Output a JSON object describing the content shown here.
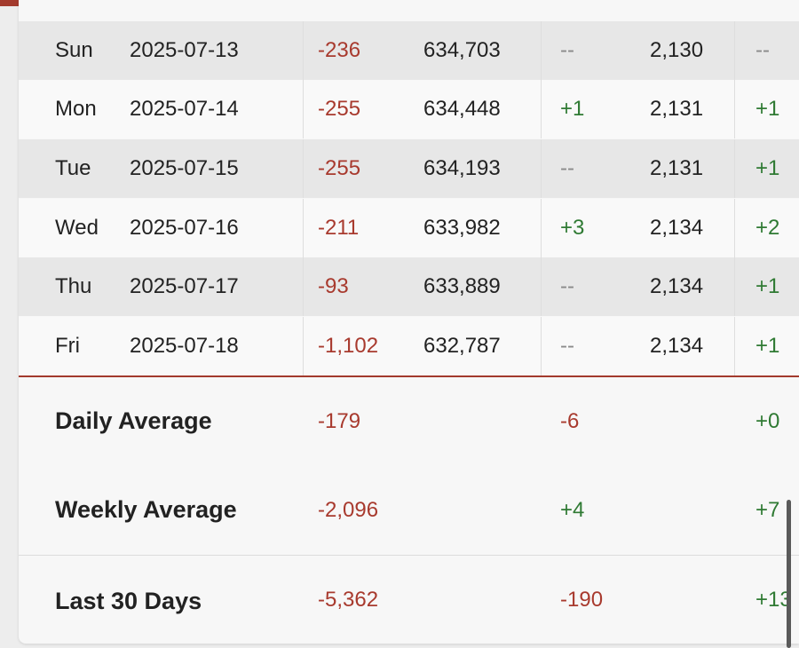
{
  "colors": {
    "accent": "#a33a2d",
    "negative": "#a83a2e",
    "positive": "#2f7a33",
    "neutral": "#8a8a8a"
  },
  "rows": [
    {
      "day": "Sun",
      "date": "2025-07-13",
      "change": "-236",
      "total": "634,703",
      "delta2": "--",
      "count": "2,130",
      "delta3": "--"
    },
    {
      "day": "Mon",
      "date": "2025-07-14",
      "change": "-255",
      "total": "634,448",
      "delta2": "+1",
      "count": "2,131",
      "delta3": "+1"
    },
    {
      "day": "Tue",
      "date": "2025-07-15",
      "change": "-255",
      "total": "634,193",
      "delta2": "--",
      "count": "2,131",
      "delta3": "+1"
    },
    {
      "day": "Wed",
      "date": "2025-07-16",
      "change": "-211",
      "total": "633,982",
      "delta2": "+3",
      "count": "2,134",
      "delta3": "+2"
    },
    {
      "day": "Thu",
      "date": "2025-07-17",
      "change": "-93",
      "total": "633,889",
      "delta2": "--",
      "count": "2,134",
      "delta3": "+1"
    },
    {
      "day": "Fri",
      "date": "2025-07-18",
      "change": "-1,102",
      "total": "632,787",
      "delta2": "--",
      "count": "2,134",
      "delta3": "+1"
    }
  ],
  "summary": [
    {
      "label": "Daily Average",
      "change": "-179",
      "delta2": "-6",
      "delta3": "+0"
    },
    {
      "label": "Weekly Average",
      "change": "-2,096",
      "delta2": "+4",
      "delta3": "+7"
    },
    {
      "label": "Last 30 Days",
      "change": "-5,362",
      "delta2": "-190",
      "delta3": "+13"
    }
  ]
}
